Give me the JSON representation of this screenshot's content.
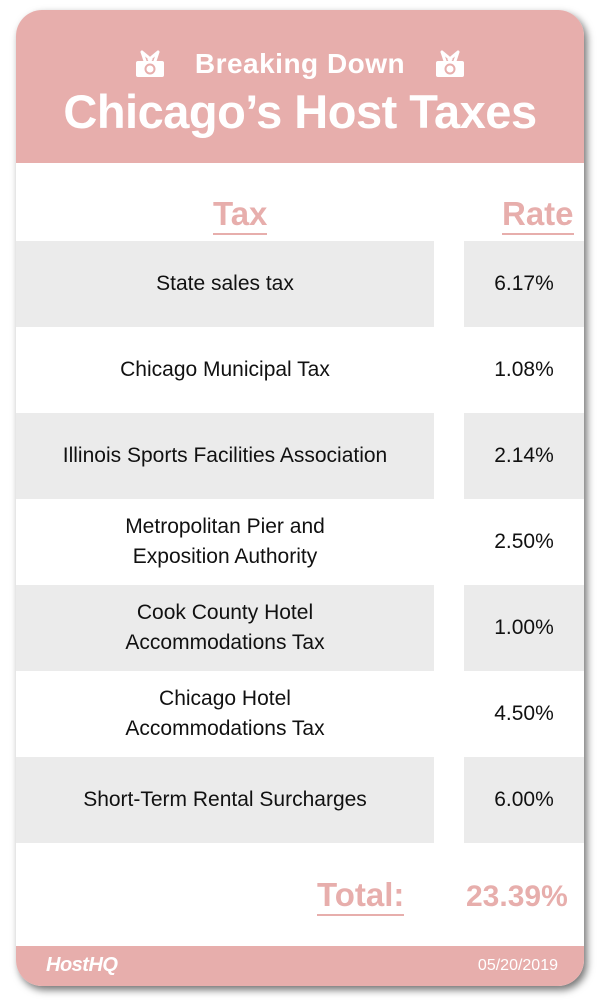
{
  "header": {
    "subtitle": "Breaking Down",
    "title": "Chicago’s Host Taxes",
    "icon": "money-gift-icon"
  },
  "columns": {
    "tax": "Tax",
    "rate": "Rate"
  },
  "rows": [
    {
      "name": "State sales tax",
      "rate": "6.17%"
    },
    {
      "name": "Chicago Municipal Tax",
      "rate": "1.08%"
    },
    {
      "name": "Illinois Sports Facilities Association",
      "rate": "2.14%"
    },
    {
      "name": "Metropolitan Pier and Exposition Authority",
      "rate": "2.50%"
    },
    {
      "name": "Cook County Hotel Accommodations Tax",
      "rate": "1.00%"
    },
    {
      "name": "Chicago Hotel Accommodations Tax",
      "rate": "4.50%"
    },
    {
      "name": "Short-Term Rental Surcharges",
      "rate": "6.00%"
    }
  ],
  "total": {
    "label": "Total:",
    "value": "23.39%"
  },
  "footer": {
    "logo": "HostHQ",
    "date": "05/20/2019"
  },
  "colors": {
    "accent": "#e7aeac",
    "shade": "#ebebeb"
  }
}
